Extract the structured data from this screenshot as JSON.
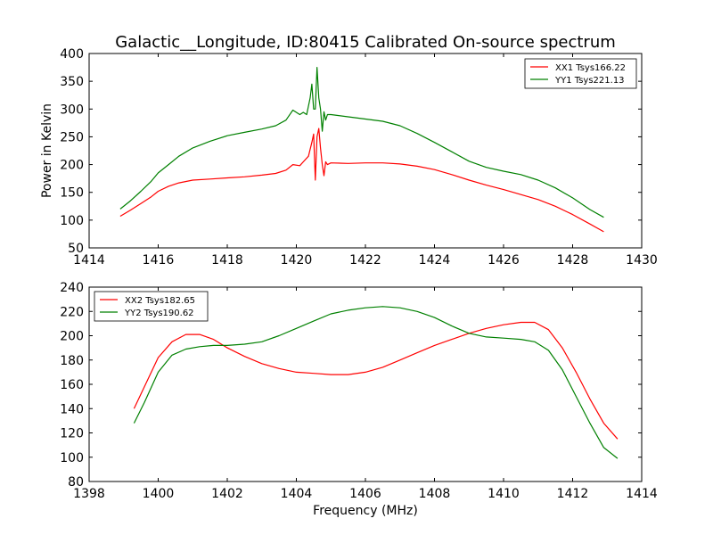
{
  "title": "Galactic__Longitude, ID:80415 Calibrated On-source spectrum",
  "chart_data": [
    {
      "type": "line",
      "title": "Galactic__Longitude, ID:80415 Calibrated On-source spectrum",
      "xlabel": "",
      "ylabel": "Power in Kelvin",
      "xlim": [
        1414,
        1430
      ],
      "ylim": [
        50,
        400
      ],
      "xticks": [
        "1414",
        "1416",
        "1418",
        "1420",
        "1422",
        "1424",
        "1426",
        "1428",
        "1430"
      ],
      "yticks": [
        "50",
        "100",
        "150",
        "200",
        "250",
        "300",
        "350",
        "400"
      ],
      "grid": false,
      "legend_position": "top-right",
      "series": [
        {
          "name": "XX1 Tsys166.22",
          "color": "#ff0000",
          "x": [
            1414.9,
            1415.2,
            1415.5,
            1415.8,
            1416.0,
            1416.3,
            1416.6,
            1417.0,
            1417.5,
            1418.0,
            1418.5,
            1419.0,
            1419.4,
            1419.7,
            1419.9,
            1420.1,
            1420.2,
            1420.35,
            1420.45,
            1420.5,
            1420.55,
            1420.6,
            1420.65,
            1420.7,
            1420.75,
            1420.8,
            1420.85,
            1420.9,
            1421.0,
            1421.5,
            1422.0,
            1422.5,
            1423.0,
            1423.5,
            1424.0,
            1424.5,
            1425.0,
            1425.5,
            1426.0,
            1426.5,
            1427.0,
            1427.5,
            1428.0,
            1428.5,
            1428.9
          ],
          "y": [
            107,
            118,
            130,
            142,
            152,
            161,
            167,
            172,
            174,
            176,
            178,
            181,
            184,
            190,
            200,
            198,
            205,
            215,
            240,
            255,
            172,
            250,
            265,
            230,
            200,
            180,
            205,
            200,
            203,
            202,
            203,
            203,
            201,
            197,
            191,
            182,
            172,
            163,
            155,
            146,
            137,
            125,
            110,
            93,
            79
          ]
        },
        {
          "name": "YY1 Tsys221.13",
          "color": "#008000",
          "x": [
            1414.9,
            1415.2,
            1415.5,
            1415.8,
            1416.0,
            1416.3,
            1416.6,
            1417.0,
            1417.5,
            1418.0,
            1418.5,
            1419.0,
            1419.4,
            1419.7,
            1419.9,
            1420.1,
            1420.2,
            1420.3,
            1420.4,
            1420.45,
            1420.5,
            1420.55,
            1420.6,
            1420.65,
            1420.7,
            1420.75,
            1420.8,
            1420.85,
            1420.9,
            1421.0,
            1421.5,
            1422.0,
            1422.5,
            1423.0,
            1423.5,
            1424.0,
            1424.5,
            1425.0,
            1425.5,
            1426.0,
            1426.5,
            1427.0,
            1427.5,
            1428.0,
            1428.5,
            1428.9
          ],
          "y": [
            120,
            135,
            152,
            170,
            185,
            200,
            215,
            230,
            242,
            252,
            258,
            264,
            270,
            280,
            298,
            290,
            294,
            290,
            320,
            345,
            300,
            300,
            375,
            320,
            300,
            260,
            295,
            280,
            290,
            290,
            286,
            282,
            278,
            270,
            256,
            240,
            223,
            206,
            195,
            188,
            182,
            172,
            158,
            140,
            119,
            105
          ]
        }
      ]
    },
    {
      "type": "line",
      "title": "",
      "xlabel": "Frequency (MHz)",
      "ylabel": "",
      "xlim": [
        1398,
        1414
      ],
      "ylim": [
        80,
        240
      ],
      "xticks": [
        "1398",
        "1400",
        "1402",
        "1404",
        "1406",
        "1408",
        "1410",
        "1412",
        "1414"
      ],
      "yticks": [
        "80",
        "100",
        "120",
        "140",
        "160",
        "180",
        "200",
        "220",
        "240"
      ],
      "grid": false,
      "legend_position": "top-left",
      "series": [
        {
          "name": "XX2 Tsys182.65",
          "color": "#ff0000",
          "x": [
            1399.3,
            1399.6,
            1400.0,
            1400.4,
            1400.8,
            1401.2,
            1401.6,
            1402.0,
            1402.5,
            1403.0,
            1403.5,
            1404.0,
            1404.5,
            1405.0,
            1405.5,
            1406.0,
            1406.5,
            1407.0,
            1407.5,
            1408.0,
            1408.5,
            1409.0,
            1409.5,
            1410.0,
            1410.5,
            1410.9,
            1411.3,
            1411.7,
            1412.1,
            1412.5,
            1412.9,
            1413.3
          ],
          "y": [
            140,
            158,
            182,
            195,
            201,
            201,
            197,
            190,
            183,
            177,
            173,
            170,
            169,
            168,
            168,
            170,
            174,
            180,
            186,
            192,
            197,
            202,
            206,
            209,
            211,
            211,
            205,
            190,
            170,
            148,
            128,
            115
          ]
        },
        {
          "name": "YY2 Tsys190.62",
          "color": "#008000",
          "x": [
            1399.3,
            1399.6,
            1400.0,
            1400.4,
            1400.8,
            1401.2,
            1401.6,
            1402.0,
            1402.5,
            1403.0,
            1403.5,
            1404.0,
            1404.5,
            1405.0,
            1405.5,
            1406.0,
            1406.5,
            1407.0,
            1407.5,
            1408.0,
            1408.5,
            1409.0,
            1409.5,
            1410.0,
            1410.5,
            1410.9,
            1411.3,
            1411.7,
            1412.1,
            1412.5,
            1412.9,
            1413.3
          ],
          "y": [
            128,
            145,
            170,
            184,
            189,
            191,
            192,
            192,
            193,
            195,
            200,
            206,
            212,
            218,
            221,
            223,
            224,
            223,
            220,
            215,
            208,
            202,
            199,
            198,
            197,
            195,
            188,
            172,
            150,
            128,
            108,
            99
          ]
        }
      ]
    }
  ]
}
